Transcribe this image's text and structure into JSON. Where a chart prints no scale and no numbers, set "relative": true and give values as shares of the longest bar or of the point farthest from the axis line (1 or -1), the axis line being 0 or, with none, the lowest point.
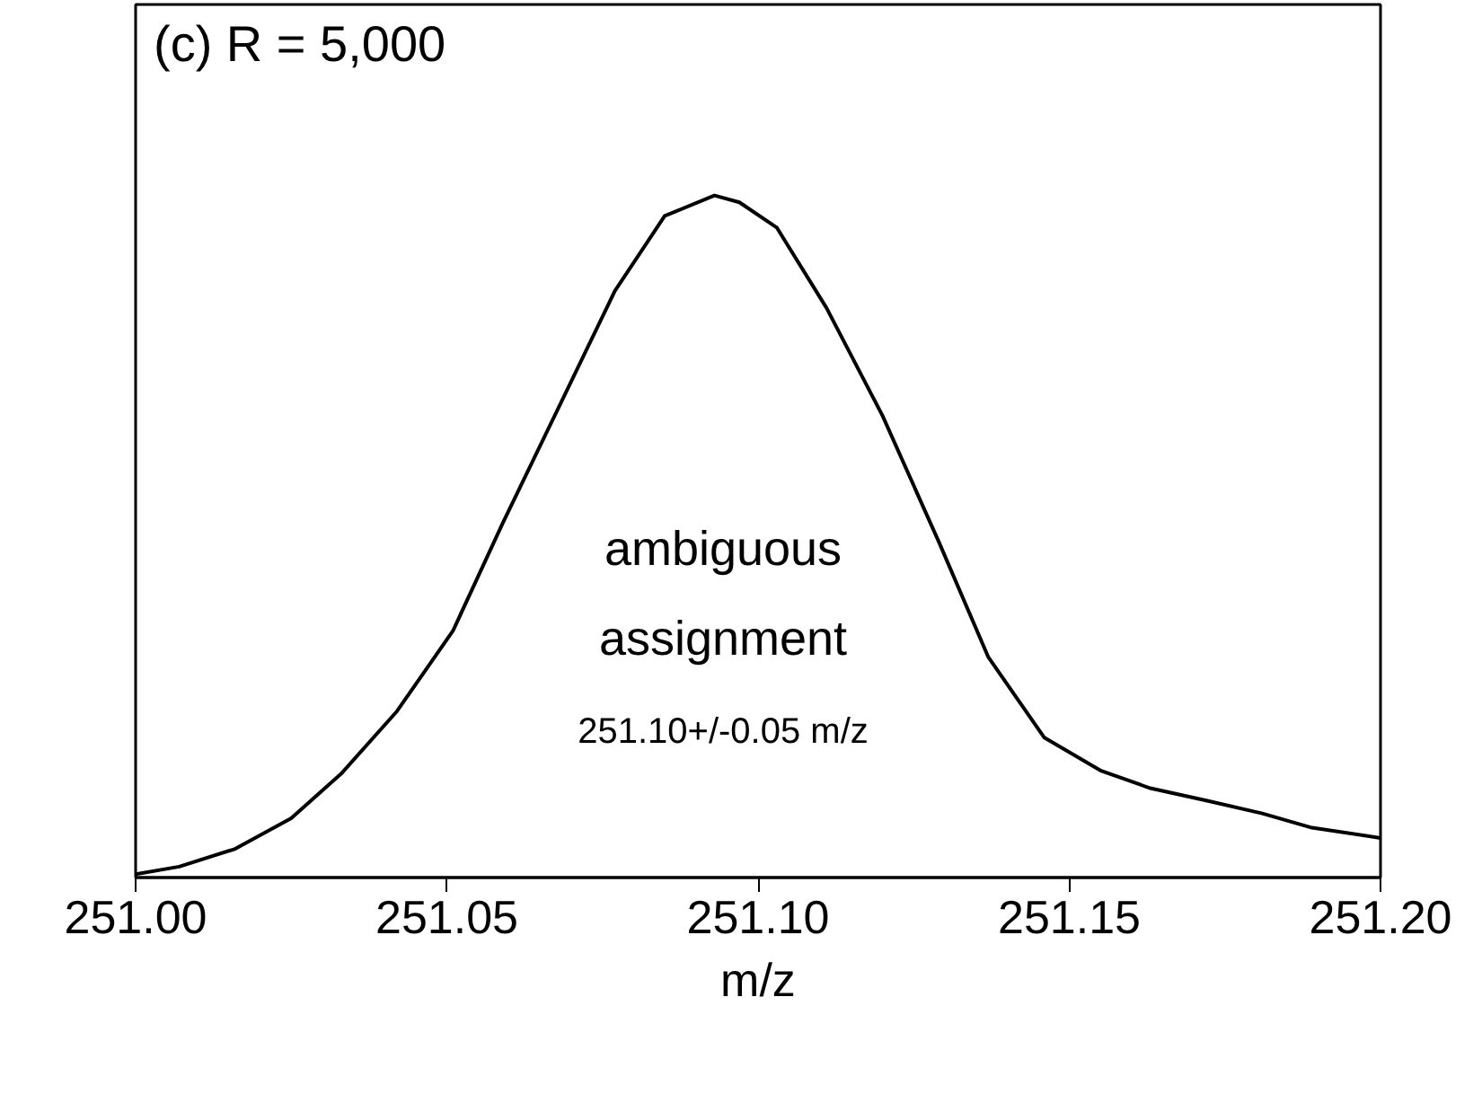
{
  "chart_data": {
    "type": "line",
    "relative": true,
    "xlabel": "m/z",
    "xlim": [
      251.0,
      251.2
    ],
    "xticks": [
      {
        "value": 251.0,
        "label": "251.00"
      },
      {
        "value": 251.05,
        "label": "251.05"
      },
      {
        "value": 251.1,
        "label": "251.10"
      },
      {
        "value": 251.15,
        "label": "251.15"
      },
      {
        "value": 251.2,
        "label": "251.20"
      }
    ],
    "tick_labels": "x",
    "grid": false,
    "marker": "none",
    "line_style": "solid",
    "annotations": [
      "(c) R = 5,000",
      "ambiguous",
      "assignment",
      "251.10+/-0.05 m/z"
    ],
    "series": [
      {
        "color": "#000000",
        "x": [
          251.0,
          251.007,
          251.016,
          251.025,
          251.033,
          251.042,
          251.051,
          251.059,
          251.068,
          251.077,
          251.085,
          251.093,
          251.097,
          251.103,
          251.111,
          251.12,
          251.129,
          251.137,
          251.146,
          251.155,
          251.163,
          251.172,
          251.181,
          251.189,
          251.2
        ],
        "values": [
          0.005,
          0.016,
          0.042,
          0.087,
          0.152,
          0.244,
          0.362,
          0.52,
          0.69,
          0.86,
          0.97,
          1.0,
          0.99,
          0.953,
          0.835,
          0.677,
          0.493,
          0.323,
          0.205,
          0.157,
          0.131,
          0.113,
          0.094,
          0.073,
          0.058
        ]
      }
    ]
  }
}
